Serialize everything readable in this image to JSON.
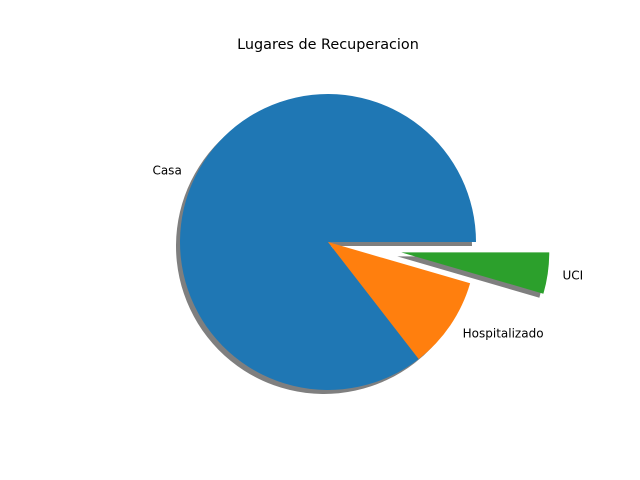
{
  "chart_data": {
    "type": "pie",
    "title": "Lugares de Recuperacion",
    "categories": [
      "Casa",
      "Hospitalizado",
      "UCI"
    ],
    "values": [
      85.5,
      10.0,
      4.5
    ],
    "explode": [
      0,
      0,
      0.5
    ],
    "colors": [
      "#1f77b4",
      "#ff7f0e",
      "#2ca02c"
    ],
    "shadow": true,
    "start_angle_deg": 0,
    "direction": "counterclockwise"
  }
}
